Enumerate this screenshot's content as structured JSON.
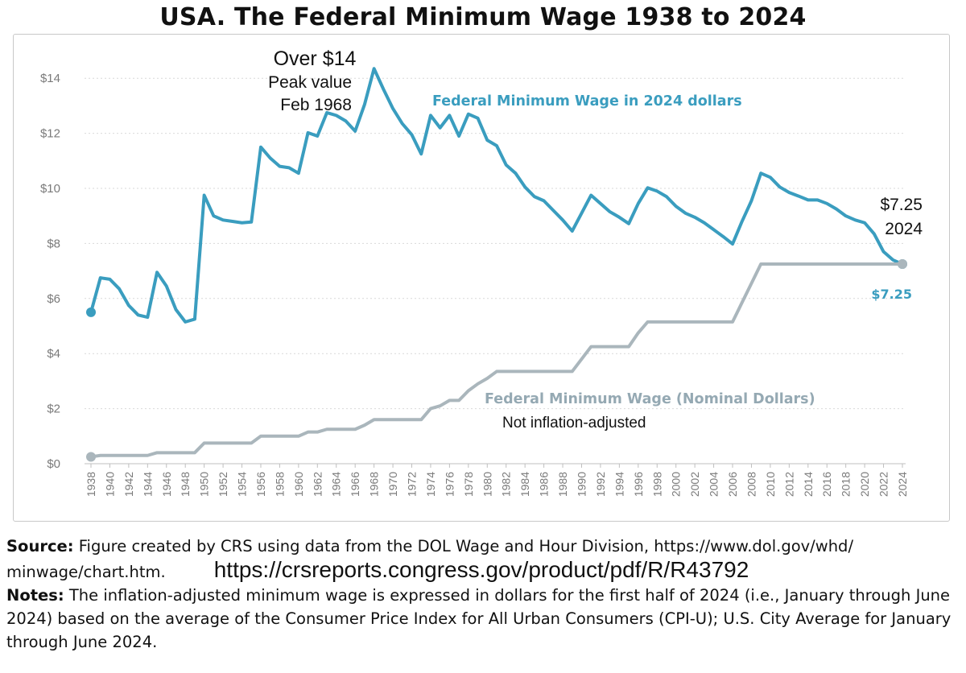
{
  "title": "USA.  The Federal Minimum Wage 1938 to 2024",
  "chart_data": {
    "type": "line",
    "x": [
      1938,
      1939,
      1940,
      1941,
      1942,
      1943,
      1944,
      1945,
      1946,
      1947,
      1948,
      1949,
      1950,
      1951,
      1952,
      1953,
      1954,
      1955,
      1956,
      1957,
      1958,
      1959,
      1960,
      1961,
      1962,
      1963,
      1964,
      1965,
      1966,
      1967,
      1968,
      1969,
      1970,
      1971,
      1972,
      1973,
      1974,
      1975,
      1976,
      1977,
      1978,
      1979,
      1980,
      1981,
      1982,
      1983,
      1984,
      1985,
      1986,
      1987,
      1988,
      1989,
      1990,
      1991,
      1992,
      1993,
      1994,
      1995,
      1996,
      1997,
      1998,
      1999,
      2000,
      2001,
      2002,
      2003,
      2004,
      2005,
      2006,
      2007,
      2008,
      2009,
      2010,
      2011,
      2012,
      2013,
      2014,
      2015,
      2016,
      2017,
      2018,
      2019,
      2020,
      2021,
      2022,
      2023,
      2024
    ],
    "series": [
      {
        "key": "real",
        "values": [
          5.5,
          6.75,
          6.7,
          6.35,
          5.75,
          5.4,
          5.32,
          6.95,
          6.45,
          5.6,
          5.15,
          5.25,
          9.75,
          9.0,
          8.85,
          8.8,
          8.75,
          8.78,
          11.5,
          11.1,
          10.8,
          10.75,
          10.55,
          12.02,
          11.9,
          12.75,
          12.65,
          12.45,
          12.08,
          13.05,
          14.35,
          13.6,
          12.9,
          12.35,
          11.95,
          11.25,
          12.65,
          12.2,
          12.65,
          11.9,
          12.7,
          12.55,
          11.75,
          11.55,
          10.85,
          10.55,
          10.05,
          9.7,
          9.55,
          9.2,
          8.85,
          8.45,
          9.1,
          9.75,
          9.45,
          9.15,
          8.95,
          8.72,
          9.45,
          10.02,
          9.9,
          9.7,
          9.35,
          9.1,
          8.95,
          8.75,
          8.5,
          8.25,
          7.98,
          8.8,
          9.55,
          10.55,
          10.4,
          10.05,
          9.85,
          9.72,
          9.58,
          9.58,
          9.45,
          9.25,
          9.0,
          8.85,
          8.75,
          8.35,
          7.7,
          7.4,
          7.25
        ],
        "color": "#3a9dbf"
      },
      {
        "key": "nominal",
        "values": [
          0.25,
          0.3,
          0.3,
          0.3,
          0.3,
          0.3,
          0.3,
          0.4,
          0.4,
          0.4,
          0.4,
          0.4,
          0.75,
          0.75,
          0.75,
          0.75,
          0.75,
          0.75,
          1.0,
          1.0,
          1.0,
          1.0,
          1.0,
          1.15,
          1.15,
          1.25,
          1.25,
          1.25,
          1.25,
          1.4,
          1.6,
          1.6,
          1.6,
          1.6,
          1.6,
          1.6,
          2.0,
          2.1,
          2.3,
          2.3,
          2.65,
          2.9,
          3.1,
          3.35,
          3.35,
          3.35,
          3.35,
          3.35,
          3.35,
          3.35,
          3.35,
          3.35,
          3.8,
          4.25,
          4.25,
          4.25,
          4.25,
          4.25,
          4.75,
          5.15,
          5.15,
          5.15,
          5.15,
          5.15,
          5.15,
          5.15,
          5.15,
          5.15,
          5.15,
          5.85,
          6.55,
          7.25,
          7.25,
          7.25,
          7.25,
          7.25,
          7.25,
          7.25,
          7.25,
          7.25,
          7.25,
          7.25,
          7.25,
          7.25,
          7.25,
          7.25,
          7.25
        ],
        "color": "#aab6bc"
      }
    ],
    "ylim": [
      0,
      15
    ],
    "yticks": [
      0,
      2,
      4,
      6,
      8,
      10,
      12,
      14
    ],
    "ytick_labels": [
      "$0",
      "$2",
      "$4",
      "$6",
      "$8",
      "$10",
      "$12",
      "$14"
    ],
    "xticks": [
      1938,
      1940,
      1942,
      1944,
      1946,
      1948,
      1950,
      1952,
      1954,
      1956,
      1958,
      1960,
      1962,
      1964,
      1966,
      1968,
      1970,
      1972,
      1974,
      1976,
      1978,
      1980,
      1982,
      1984,
      1986,
      1988,
      1990,
      1992,
      1994,
      1996,
      1998,
      2000,
      2002,
      2004,
      2006,
      2008,
      2010,
      2012,
      2014,
      2016,
      2018,
      2020,
      2022,
      2024
    ],
    "grid": true,
    "annotations": {
      "peak_line1": "Over $14",
      "peak_line2": "Peak value",
      "peak_line3": "Feb 1968",
      "real_series_label": "Federal Minimum Wage in 2024 dollars",
      "end_value_line1": "$7.25",
      "end_value_line2": "2024",
      "end_value_blue": "$7.25",
      "nominal_series_label": "Federal Minimum Wage (Nominal Dollars)",
      "nominal_note": "Not inflation-adjusted"
    }
  },
  "footer": {
    "source_label": "Source:",
    "source_text": " Figure created by CRS using data from the DOL Wage and Hour Division, https://www.dol.gov/whd/",
    "source_text2": "minwage/chart.htm.",
    "url": "https://crsreports.congress.gov/product/pdf/R/R43792",
    "notes_label": "Notes:",
    "notes_text": " The inflation-adjusted minimum wage is expressed in dollars for the first half of 2024 (i.e., January through June 2024) based on the average of the Consumer Price Index for All Urban Consumers (CPI-U); U.S. City Average for January through June 2024."
  }
}
